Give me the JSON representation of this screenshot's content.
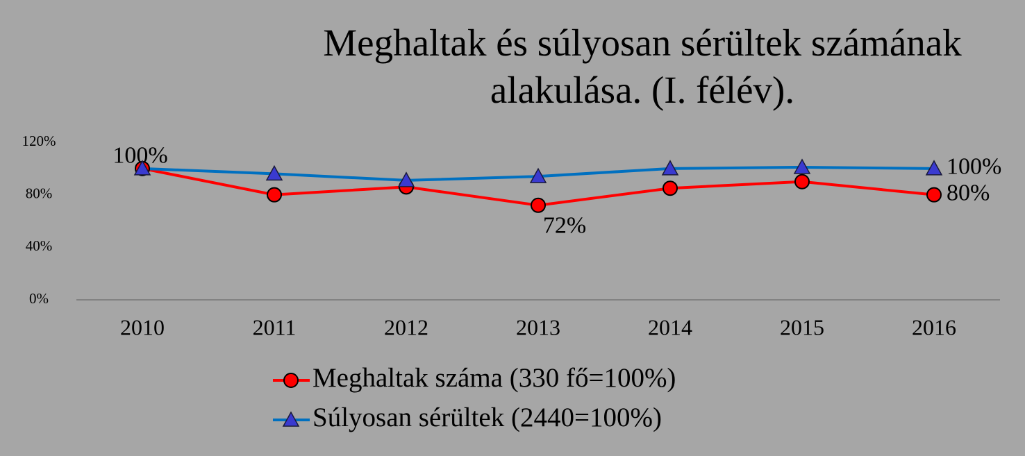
{
  "chart_data": {
    "type": "line",
    "title": "Meghaltak és súlyosan sérültek számának alakulása. (I. félév).",
    "categories": [
      "2010",
      "2011",
      "2012",
      "2013",
      "2014",
      "2015",
      "2016"
    ],
    "series": [
      {
        "name": "Meghaltak száma (330 fő=100%)",
        "color": "#ff0000",
        "marker": "circle",
        "marker_fill": "#ff0000",
        "values": [
          100,
          80,
          86,
          72,
          85,
          90,
          80
        ],
        "value_labels": [
          "100%",
          null,
          null,
          "72%",
          null,
          null,
          "80%"
        ]
      },
      {
        "name": "Súlyosan sérültek (2440=100%)",
        "color": "#0070c0",
        "marker": "triangle",
        "marker_fill": "#3a3ad0",
        "values": [
          100,
          96,
          91,
          94,
          100,
          101,
          100
        ],
        "value_labels": [
          null,
          null,
          null,
          null,
          null,
          null,
          "100%"
        ]
      }
    ],
    "ylim": [
      0,
      120
    ],
    "yticks": [
      {
        "value": 0,
        "label": "0%"
      },
      {
        "value": 40,
        "label": "40%"
      },
      {
        "value": 80,
        "label": "80%"
      },
      {
        "value": 120,
        "label": "120%"
      }
    ],
    "grid": false,
    "legend": "bottom"
  }
}
